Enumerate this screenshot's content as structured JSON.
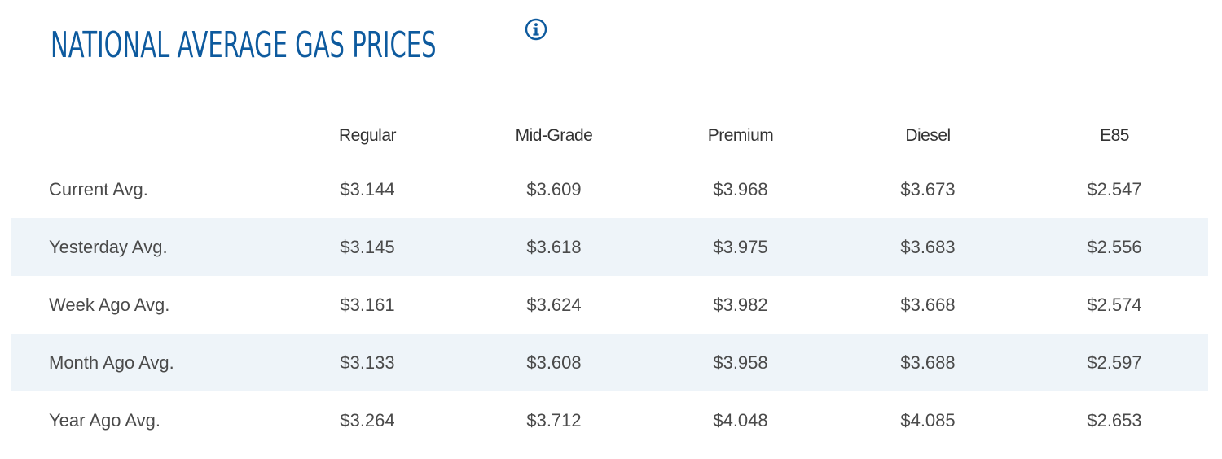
{
  "title": "NATIONAL AVERAGE GAS PRICES",
  "info_icon": "info-circle-icon",
  "colors": {
    "title": "#0d5a9e",
    "shaded_row": "#eef4f9",
    "text": "#4a4a4a"
  },
  "table": {
    "columns": [
      "Regular",
      "Mid-Grade",
      "Premium",
      "Diesel",
      "E85"
    ],
    "rows": [
      {
        "label": "Current Avg.",
        "values": [
          "$3.144",
          "$3.609",
          "$3.968",
          "$3.673",
          "$2.547"
        ]
      },
      {
        "label": "Yesterday Avg.",
        "values": [
          "$3.145",
          "$3.618",
          "$3.975",
          "$3.683",
          "$2.556"
        ]
      },
      {
        "label": "Week Ago Avg.",
        "values": [
          "$3.161",
          "$3.624",
          "$3.982",
          "$3.668",
          "$2.574"
        ]
      },
      {
        "label": "Month Ago Avg.",
        "values": [
          "$3.133",
          "$3.608",
          "$3.958",
          "$3.688",
          "$2.597"
        ]
      },
      {
        "label": "Year Ago Avg.",
        "values": [
          "$3.264",
          "$3.712",
          "$4.048",
          "$4.085",
          "$2.653"
        ]
      }
    ]
  }
}
